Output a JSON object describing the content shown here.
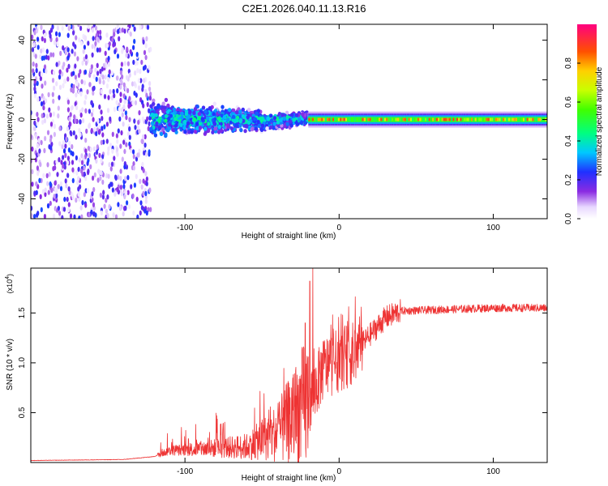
{
  "title": "C2E1.2026.040.11.13.R16",
  "chart_data": [
    {
      "type": "heatmap",
      "name": "spectrogram",
      "xlabel": "Height of straight line (km)",
      "ylabel": "Frequency (Hz)",
      "xlim": [
        -200,
        135
      ],
      "ylim": [
        -50,
        48
      ],
      "x_ticks": [
        {
          "v": -100,
          "label": "-100"
        },
        {
          "v": 0,
          "label": "0"
        },
        {
          "v": 100,
          "label": "100"
        }
      ],
      "y_ticks": [
        {
          "v": -40,
          "label": "-40"
        },
        {
          "v": -20,
          "label": "-20"
        },
        {
          "v": 0,
          "label": "0"
        },
        {
          "v": 20,
          "label": "20"
        },
        {
          "v": 40,
          "label": "40"
        }
      ],
      "colorbar": {
        "label": "Normalized spectral amplitude",
        "range": [
          0,
          1
        ],
        "ticks": [
          {
            "v": 0.0,
            "label": "0.0"
          },
          {
            "v": 0.2,
            "label": "0.2"
          },
          {
            "v": 0.4,
            "label": "0.4"
          },
          {
            "v": 0.6,
            "label": "0.6"
          },
          {
            "v": 0.8,
            "label": "0.8"
          }
        ]
      },
      "regions": [
        {
          "x_range": [
            -200,
            -122
          ],
          "description": "broadband noise",
          "freq_spread": 48,
          "amplitude": 0.12
        },
        {
          "x_range": [
            -122,
            -20
          ],
          "description": "narrowing signal",
          "freq_spread_start": 12,
          "freq_spread_end": 4,
          "amplitude": 0.35
        },
        {
          "x_range": [
            -20,
            135
          ],
          "description": "stable carrier",
          "freq_center": 0,
          "freq_spread": 2,
          "amplitude": 0.85
        }
      ]
    },
    {
      "type": "line",
      "name": "snr",
      "xlabel": "Height of straight line (km)",
      "ylabel": "SNR (10 * v/v)",
      "y_scale_label": "(x10",
      "y_scale_exp": "4",
      "xlim": [
        -200,
        135
      ],
      "ylim": [
        0,
        1.95
      ],
      "x_ticks": [
        {
          "v": -100,
          "label": "-100"
        },
        {
          "v": 0,
          "label": "0"
        },
        {
          "v": 100,
          "label": "100"
        }
      ],
      "y_ticks": [
        {
          "v": 0.5,
          "label": "0.5"
        },
        {
          "v": 1.0,
          "label": "1.0"
        },
        {
          "v": 1.5,
          "label": "1.5"
        }
      ],
      "color": "#ee3333",
      "profile": [
        {
          "x": -200,
          "y": 0.02
        },
        {
          "x": -140,
          "y": 0.03
        },
        {
          "x": -120,
          "y": 0.06
        },
        {
          "x": -110,
          "y": 0.12
        },
        {
          "x": -60,
          "y": 0.16
        },
        {
          "x": -40,
          "y": 0.3
        },
        {
          "x": -30,
          "y": 0.45
        },
        {
          "x": -18,
          "y": 0.65
        },
        {
          "x": -10,
          "y": 0.95
        },
        {
          "x": 10,
          "y": 1.1
        },
        {
          "x": 20,
          "y": 1.28
        },
        {
          "x": 30,
          "y": 1.45
        },
        {
          "x": 40,
          "y": 1.52
        },
        {
          "x": 100,
          "y": 1.55
        },
        {
          "x": 135,
          "y": 1.55
        }
      ],
      "peaks": [
        {
          "x": -17,
          "y": 1.95
        },
        {
          "x": -19,
          "y": 1.82
        },
        {
          "x": -22,
          "y": 1.4
        }
      ]
    }
  ]
}
